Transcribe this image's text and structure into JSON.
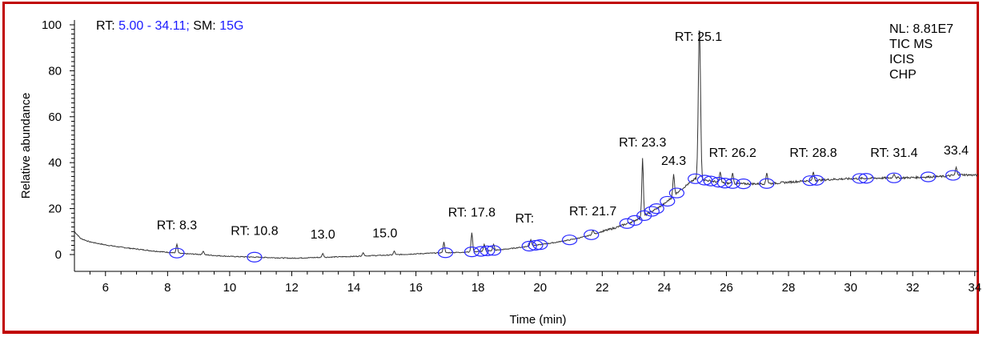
{
  "header": {
    "rt_prefix": "RT:",
    "rt_range": "5.00 - 34.11;",
    "sm_prefix": "SM:",
    "sm_value": "15G"
  },
  "info": {
    "nl": "NL: 8.81E7",
    "line2": "TIC MS",
    "line3": "ICIS",
    "line4": "CHP"
  },
  "colors": {
    "frame": "#c00000",
    "trace": "#333333",
    "marker": "#2a2aff",
    "highlight": "#1a1aff"
  },
  "chart_data": {
    "type": "line",
    "xlabel": "Time (min)",
    "ylabel": "Relative abundance",
    "xlim": [
      5.0,
      34.11
    ],
    "ylim": [
      -4,
      100
    ],
    "xticks": [
      6,
      8,
      10,
      12,
      14,
      16,
      18,
      20,
      22,
      24,
      26,
      28,
      30,
      32,
      34
    ],
    "yticks": [
      0,
      20,
      40,
      60,
      80,
      100
    ],
    "baseline": [
      [
        5.0,
        10
      ],
      [
        5.2,
        7
      ],
      [
        5.5,
        5.5
      ],
      [
        6.0,
        4.2
      ],
      [
        6.5,
        3.2
      ],
      [
        7.0,
        2.4
      ],
      [
        7.5,
        1.6
      ],
      [
        8.0,
        1.0
      ],
      [
        8.5,
        0.4
      ],
      [
        9.0,
        0.1
      ],
      [
        9.5,
        -0.4
      ],
      [
        10.0,
        -0.8
      ],
      [
        10.5,
        -1.0
      ],
      [
        11.0,
        -1.2
      ],
      [
        11.5,
        -1.4
      ],
      [
        12.0,
        -1.6
      ],
      [
        12.5,
        -1.4
      ],
      [
        13.0,
        -1.2
      ],
      [
        13.5,
        -1.0
      ],
      [
        14.0,
        -0.8
      ],
      [
        14.5,
        -0.5
      ],
      [
        15.0,
        -0.3
      ],
      [
        15.5,
        0.0
      ],
      [
        16.0,
        0.3
      ],
      [
        16.5,
        0.6
      ],
      [
        17.0,
        0.8
      ],
      [
        17.5,
        1.0
      ],
      [
        18.0,
        1.3
      ],
      [
        18.5,
        1.8
      ],
      [
        19.0,
        2.5
      ],
      [
        19.5,
        3.4
      ],
      [
        20.0,
        4.3
      ],
      [
        20.5,
        5.3
      ],
      [
        21.0,
        6.5
      ],
      [
        21.5,
        8.0
      ],
      [
        22.0,
        10.0
      ],
      [
        22.5,
        12.0
      ],
      [
        23.0,
        14.5
      ],
      [
        23.5,
        18.0
      ],
      [
        24.0,
        22.0
      ],
      [
        24.5,
        28.0
      ],
      [
        25.0,
        33.0
      ],
      [
        25.5,
        32.0
      ],
      [
        26.0,
        31.0
      ],
      [
        26.5,
        30.8
      ],
      [
        27.0,
        30.8
      ],
      [
        27.5,
        31.0
      ],
      [
        28.0,
        31.5
      ],
      [
        28.5,
        32.0
      ],
      [
        29.0,
        32.4
      ],
      [
        29.5,
        32.8
      ],
      [
        30.0,
        33.0
      ],
      [
        30.5,
        33.2
      ],
      [
        31.0,
        33.3
      ],
      [
        31.5,
        33.4
      ],
      [
        32.0,
        33.5
      ],
      [
        32.5,
        33.8
      ],
      [
        33.0,
        34.0
      ],
      [
        33.5,
        34.8
      ],
      [
        34.11,
        34.5
      ]
    ],
    "spikes": [
      [
        8.3,
        4.5
      ],
      [
        9.15,
        1.5
      ],
      [
        13.0,
        0.5
      ],
      [
        14.3,
        0.8
      ],
      [
        15.3,
        1.5
      ],
      [
        16.9,
        5.5
      ],
      [
        17.8,
        9.5
      ],
      [
        18.2,
        4.5
      ],
      [
        18.5,
        4.5
      ],
      [
        19.7,
        6.5
      ],
      [
        21.7,
        10.5
      ],
      [
        23.3,
        42
      ],
      [
        24.3,
        35
      ],
      [
        25.13,
        100
      ],
      [
        25.8,
        36
      ],
      [
        26.2,
        35.5
      ],
      [
        27.3,
        35.5
      ],
      [
        28.8,
        36
      ],
      [
        31.4,
        35
      ],
      [
        33.4,
        38
      ]
    ],
    "markers": [
      8.3,
      10.8,
      16.95,
      17.8,
      18.1,
      18.3,
      18.5,
      19.65,
      19.85,
      20.0,
      20.95,
      21.65,
      22.8,
      23.05,
      23.35,
      23.6,
      23.75,
      24.1,
      24.4,
      25.0,
      25.3,
      25.5,
      25.75,
      25.95,
      26.2,
      26.55,
      27.3,
      28.7,
      28.9,
      30.3,
      30.5,
      31.4,
      32.5,
      33.3
    ],
    "peak_labels": [
      {
        "x": 8.3,
        "y": 11,
        "text": "RT: 8.3"
      },
      {
        "x": 10.8,
        "y": 8.5,
        "text": "RT: 10.8"
      },
      {
        "x": 13.0,
        "y": 7,
        "text": "13.0"
      },
      {
        "x": 15.0,
        "y": 7.5,
        "text": "15.0"
      },
      {
        "x": 17.8,
        "y": 16.5,
        "text": "RT: 17.8"
      },
      {
        "x": 19.5,
        "y": 14,
        "text": "RT:"
      },
      {
        "x": 21.7,
        "y": 17,
        "text": "RT: 21.7"
      },
      {
        "x": 23.3,
        "y": 47,
        "text": "RT: 23.3"
      },
      {
        "x": 24.3,
        "y": 39,
        "text": "24.3"
      },
      {
        "x": 25.1,
        "y": 93,
        "text": "RT: 25.1"
      },
      {
        "x": 26.2,
        "y": 42.5,
        "text": "RT: 26.2"
      },
      {
        "x": 28.8,
        "y": 42.5,
        "text": "RT: 28.8"
      },
      {
        "x": 31.4,
        "y": 42.5,
        "text": "RT: 31.4"
      },
      {
        "x": 33.4,
        "y": 43.5,
        "text": "33.4"
      }
    ]
  }
}
